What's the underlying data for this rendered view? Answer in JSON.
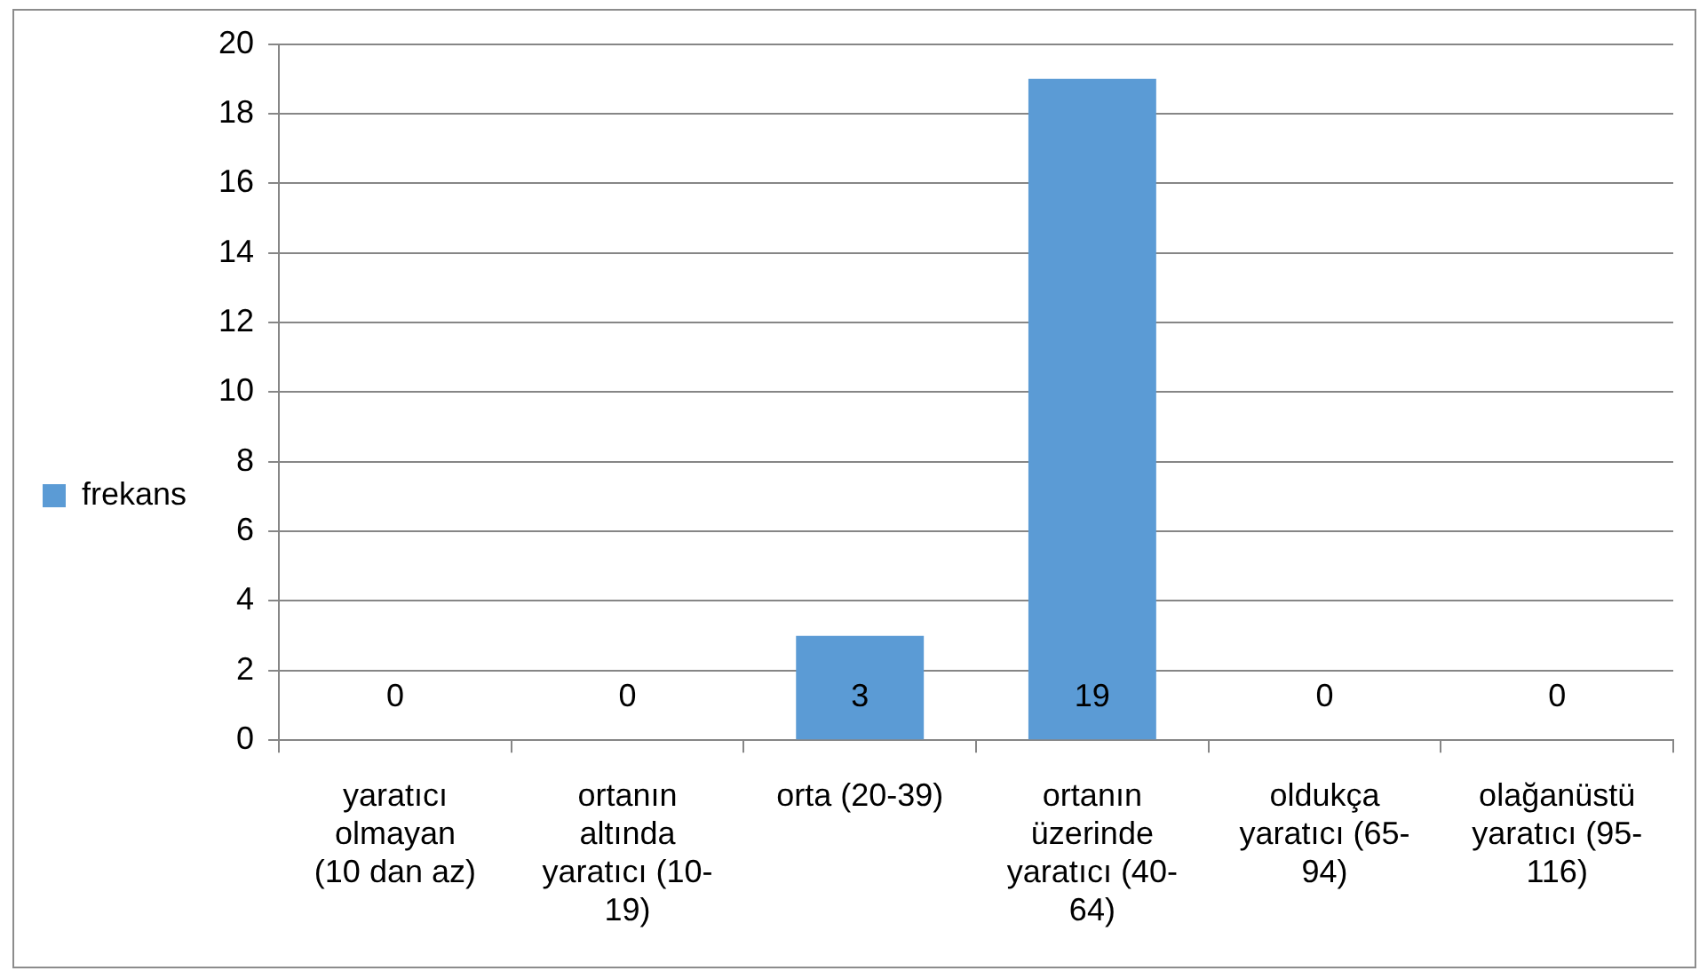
{
  "chart_data": {
    "type": "bar",
    "categories": [
      "yaratıcı olmayan (10 dan az)",
      "ortanın altında yaratıcı (10-19)",
      "orta (20-39)",
      "ortanın üzerinde yaratıcı (40-64)",
      "oldukça yaratıcı (65-94)",
      "olağanüstü yaratıcı (95-116)"
    ],
    "series": [
      {
        "name": "frekans",
        "color": "#5b9bd5",
        "values": [
          0,
          0,
          3,
          19,
          0,
          0
        ]
      }
    ],
    "ylim": [
      0,
      20
    ],
    "yticks": [
      0,
      2,
      4,
      6,
      8,
      10,
      12,
      14,
      16,
      18,
      20
    ],
    "grid": "y",
    "legend": "left",
    "data_labels": true
  }
}
